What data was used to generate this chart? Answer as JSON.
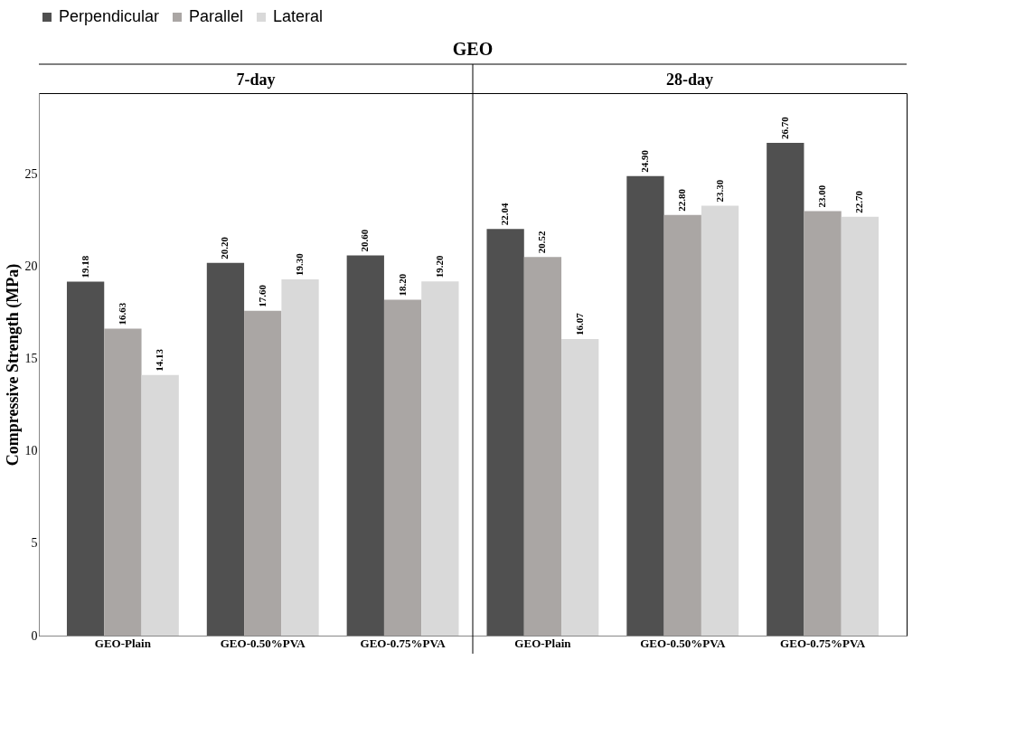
{
  "chart_data": {
    "type": "bar",
    "title": "GEO",
    "categories": [
      "GEO-Plain",
      "GEO-0.50%PVA",
      "GEO-0.75%PVA",
      "GEO-Plain",
      "GEO-0.50%PVA",
      "GEO-0.75%PVA"
    ],
    "annotations": [
      "7-day",
      "28-day"
    ],
    "series": [
      {
        "name": "Perpendicular",
        "color": "#505050",
        "values": [
          19.18,
          20.2,
          20.6,
          22.04,
          24.9,
          26.7
        ],
        "value_labels": [
          "19.18",
          "20.20",
          "20.60",
          "22.04",
          "24.90",
          "26.70"
        ]
      },
      {
        "name": "Parallel",
        "color": "#aaa6a4",
        "values": [
          16.63,
          17.6,
          18.2,
          20.52,
          22.8,
          23.0
        ],
        "value_labels": [
          "16.63",
          "17.60",
          "18.20",
          "20.52",
          "22.80",
          "23.00"
        ]
      },
      {
        "name": "Lateral",
        "color": "#d9d9d9",
        "values": [
          14.13,
          19.3,
          19.2,
          16.07,
          23.3,
          22.7
        ],
        "value_labels": [
          "14.13",
          "19.30",
          "19.20",
          "16.07",
          "23.30",
          "22.70"
        ]
      }
    ],
    "ylabel": "Compressive Strength (MPa)",
    "ylim": [
      0,
      29.4
    ],
    "yticks": [
      0,
      5,
      10,
      15,
      20,
      25
    ],
    "legend": "top",
    "grid": false
  }
}
